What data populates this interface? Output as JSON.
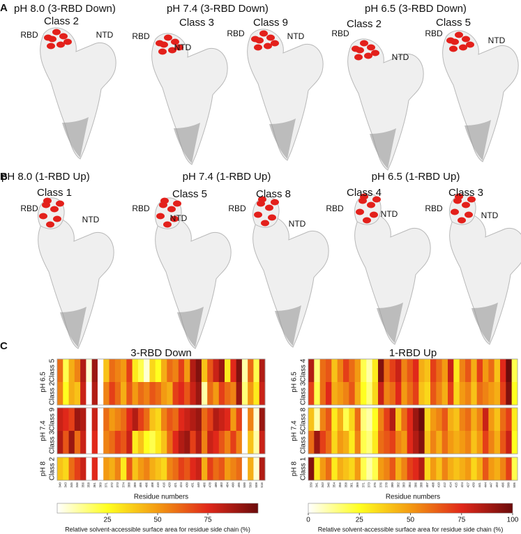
{
  "panels": [
    {
      "label": "A",
      "groups": [
        {
          "title": "pH 8.0 (3-RBD Down)",
          "structures": [
            {
              "class": "Class 2",
              "rbd": "RBD",
              "ntd": "NTD"
            }
          ]
        },
        {
          "title": "pH 7.4 (3-RBD Down)",
          "structures": [
            {
              "class": "Class 3",
              "rbd": "RBD",
              "ntd": "NTD"
            },
            {
              "class": "Class 9",
              "rbd": "RBD",
              "ntd": "NTD"
            }
          ]
        },
        {
          "title": "pH 6.5 (3-RBD Down)",
          "structures": [
            {
              "class": "Class 2",
              "rbd": "RBD",
              "ntd": "NTD"
            },
            {
              "class": "Class 5",
              "rbd": "RBD",
              "ntd": "NTD"
            }
          ]
        }
      ]
    },
    {
      "label": "B",
      "groups": [
        {
          "title": "pH 8.0 (1-RBD Up)",
          "structures": [
            {
              "class": "Class 1",
              "rbd": "RBD",
              "ntd": "NTD"
            }
          ]
        },
        {
          "title": "pH 7.4 (1-RBD Up)",
          "structures": [
            {
              "class": "Class 5",
              "rbd": "RBD",
              "ntd": "NTD"
            },
            {
              "class": "Class 8",
              "rbd": "RBD",
              "ntd": "NTD"
            }
          ]
        },
        {
          "title": "pH 6.5 (1-RBD Up)",
          "structures": [
            {
              "class": "Class 4",
              "rbd": "RBD",
              "ntd": "NTD"
            },
            {
              "class": "Class 3",
              "rbd": "RBD",
              "ntd": "NTD"
            }
          ]
        }
      ]
    },
    {
      "label": "C"
    }
  ],
  "chart_data": [
    {
      "type": "heatmap",
      "title": "3-RBD Down",
      "x_label": "Residue numbers",
      "categories": [
        340,
        343,
        345,
        346,
        356,
        358,
        361,
        369,
        371,
        372,
        373,
        374,
        388,
        389,
        405,
        406,
        408,
        410,
        416,
        420,
        421,
        424,
        430,
        431,
        440,
        466,
        478,
        480,
        483,
        484,
        490,
        495,
        500,
        503,
        509,
        516
      ],
      "groups": [
        {
          "name": "pH 6.5",
          "rows": [
            {
              "name": "Class 5",
              "values": [
                60,
                20,
                45,
                55,
                85,
                5,
                90,
                0,
                40,
                60,
                55,
                50,
                70,
                30,
                20,
                5,
                35,
                25,
                45,
                60,
                55,
                70,
                50,
                85,
                95,
                40,
                65,
                80,
                90,
                30,
                75,
                95,
                10,
                60,
                20,
                85
              ]
            },
            {
              "name": "Class 2",
              "values": [
                55,
                25,
                45,
                40,
                80,
                0,
                85,
                0,
                55,
                70,
                60,
                45,
                65,
                50,
                60,
                55,
                65,
                60,
                50,
                45,
                70,
                75,
                65,
                80,
                90,
                10,
                60,
                50,
                70,
                60,
                55,
                90,
                15,
                50,
                30,
                80
              ]
            }
          ]
        },
        {
          "name": "pH 7.4",
          "rows": [
            {
              "name": "Class 9",
              "values": [
                80,
                75,
                70,
                90,
                85,
                0,
                80,
                0,
                60,
                50,
                55,
                60,
                75,
                85,
                70,
                60,
                40,
                35,
                55,
                65,
                60,
                75,
                80,
                85,
                90,
                60,
                70,
                85,
                80,
                75,
                50,
                70,
                0,
                55,
                5,
                90
              ]
            },
            {
              "name": "Class 3",
              "values": [
                85,
                65,
                90,
                60,
                80,
                0,
                75,
                0,
                55,
                60,
                70,
                65,
                80,
                30,
                40,
                25,
                20,
                30,
                40,
                60,
                75,
                85,
                90,
                70,
                85,
                55,
                80,
                75,
                65,
                55,
                70,
                55,
                0,
                40,
                10,
                80
              ]
            }
          ]
        },
        {
          "name": "pH 8",
          "rows": [
            {
              "name": "Class 2",
              "values": [
                40,
                35,
                60,
                70,
                80,
                0,
                75,
                0,
                50,
                45,
                55,
                30,
                65,
                40,
                50,
                55,
                45,
                40,
                35,
                55,
                60,
                70,
                65,
                75,
                80,
                45,
                70,
                60,
                65,
                50,
                55,
                60,
                0,
                45,
                5,
                85
              ]
            }
          ]
        }
      ],
      "colorscale": [
        "#ffffff",
        "#ffff20",
        "#f39a12",
        "#e0281a",
        "#6b0b0b"
      ],
      "colorbar": {
        "label": "Relative solvent-accessible surface area for residue side chain (%)",
        "lim": [
          0,
          100
        ],
        "ticks": [
          25,
          50,
          75
        ]
      }
    },
    {
      "type": "heatmap",
      "title": "1-RBD Up",
      "x_label": "Residue numbers",
      "categories": [
        339,
        341,
        343,
        346,
        354,
        356,
        358,
        361,
        369,
        371,
        373,
        375,
        376,
        378,
        380,
        382,
        383,
        384,
        386,
        388,
        407,
        408,
        410,
        412,
        414,
        415,
        424,
        427,
        439,
        441,
        444,
        447,
        493,
        496,
        500,
        505
      ],
      "groups": [
        {
          "name": "pH 6.5",
          "rows": [
            {
              "name": "Class 4",
              "values": [
                85,
                15,
                60,
                65,
                40,
                55,
                70,
                60,
                50,
                20,
                10,
                30,
                95,
                60,
                70,
                80,
                55,
                65,
                75,
                45,
                40,
                70,
                60,
                50,
                80,
                30,
                55,
                65,
                45,
                70,
                50,
                60,
                40,
                75,
                100,
                20
              ]
            },
            {
              "name": "Class 3",
              "values": [
                70,
                20,
                60,
                75,
                45,
                50,
                55,
                65,
                45,
                25,
                15,
                35,
                80,
                55,
                60,
                75,
                50,
                60,
                70,
                40,
                35,
                65,
                55,
                45,
                70,
                35,
                50,
                55,
                40,
                60,
                55,
                50,
                45,
                70,
                95,
                25
              ]
            }
          ]
        },
        {
          "name": "pH 7.4",
          "rows": [
            {
              "name": "Class 8",
              "values": [
                40,
                10,
                55,
                65,
                30,
                45,
                20,
                35,
                60,
                15,
                10,
                25,
                55,
                70,
                85,
                40,
                60,
                75,
                90,
                100,
                35,
                50,
                55,
                65,
                45,
                40,
                55,
                60,
                45,
                55,
                80,
                50,
                40,
                60,
                70,
                30
              ]
            },
            {
              "name": "Class 5",
              "values": [
                60,
                90,
                70,
                60,
                35,
                50,
                45,
                30,
                55,
                20,
                15,
                30,
                60,
                65,
                70,
                55,
                50,
                75,
                85,
                95,
                40,
                55,
                45,
                60,
                50,
                45,
                50,
                55,
                40,
                50,
                70,
                55,
                45,
                65,
                80,
                25
              ]
            }
          ]
        },
        {
          "name": "pH 8",
          "rows": [
            {
              "name": "Class 1",
              "values": [
                95,
                30,
                50,
                60,
                30,
                45,
                40,
                35,
                50,
                20,
                10,
                20,
                50,
                55,
                65,
                45,
                55,
                70,
                75,
                85,
                35,
                50,
                40,
                55,
                45,
                40,
                45,
                50,
                35,
                45,
                65,
                50,
                45,
                55,
                70,
                20
              ]
            }
          ]
        }
      ],
      "colorscale": [
        "#ffffff",
        "#ffff20",
        "#f39a12",
        "#e0281a",
        "#6b0b0b"
      ],
      "colorbar": {
        "label": "Relative solvent-accessible surface area for residue side chain (%)",
        "lim": [
          0,
          100
        ],
        "ticks": [
          0,
          25,
          50,
          75,
          100
        ]
      }
    }
  ]
}
